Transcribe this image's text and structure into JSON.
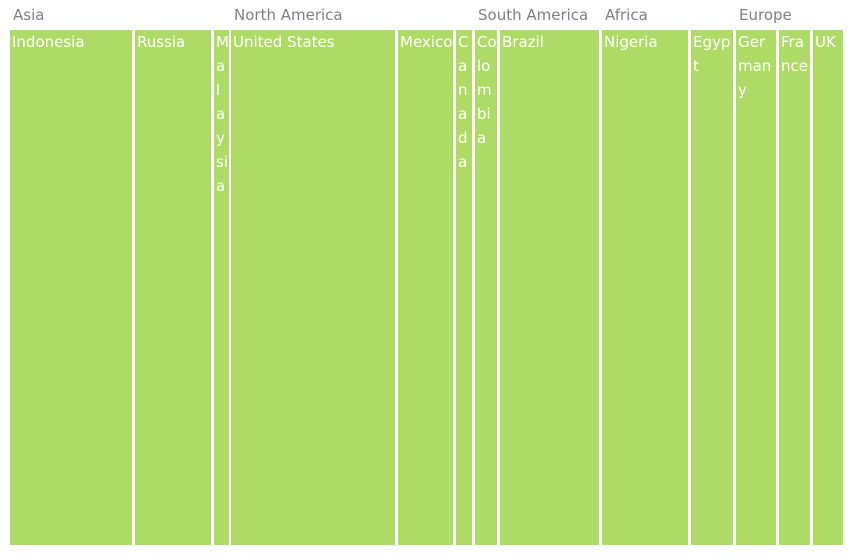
{
  "chart_data": {
    "type": "treemap",
    "fill_color": "#addb66",
    "group_label_color": "#7f7f7f",
    "groups": [
      {
        "name": "Asia",
        "items": [
          {
            "name": "Indonesia"
          },
          {
            "name": "Russia"
          },
          {
            "name": "Malaysia"
          }
        ]
      },
      {
        "name": "North America",
        "items": [
          {
            "name": "United States"
          },
          {
            "name": "Mexico"
          },
          {
            "name": "Canada"
          }
        ]
      },
      {
        "name": "South America",
        "items": [
          {
            "name": "Colombia"
          },
          {
            "name": "Brazil"
          }
        ]
      },
      {
        "name": "Africa",
        "items": [
          {
            "name": "Nigeria"
          },
          {
            "name": "Egypt"
          }
        ]
      },
      {
        "name": "Europe",
        "items": [
          {
            "name": "Germany"
          },
          {
            "name": "France"
          },
          {
            "name": "UK"
          }
        ]
      }
    ]
  }
}
